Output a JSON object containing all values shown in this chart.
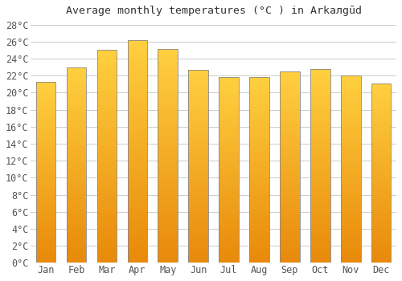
{
  "title": "Average monthly temperatures (°C ) in Arkалgūd",
  "months": [
    "Jan",
    "Feb",
    "Mar",
    "Apr",
    "May",
    "Jun",
    "Jul",
    "Aug",
    "Sep",
    "Oct",
    "Nov",
    "Dec"
  ],
  "values": [
    21.3,
    23.0,
    25.0,
    26.2,
    25.1,
    22.7,
    21.8,
    21.8,
    22.5,
    22.8,
    22.0,
    21.1
  ],
  "bar_color_bottom": "#E8890A",
  "bar_color_top": "#FFD040",
  "bar_edge_color": "#888888",
  "ylim_max": 28,
  "ytick_step": 2,
  "background_color": "#FFFFFF",
  "grid_color": "#CCCCCC",
  "font_family": "monospace",
  "title_fontsize": 9.5,
  "tick_fontsize": 8.5,
  "bar_width": 0.65
}
